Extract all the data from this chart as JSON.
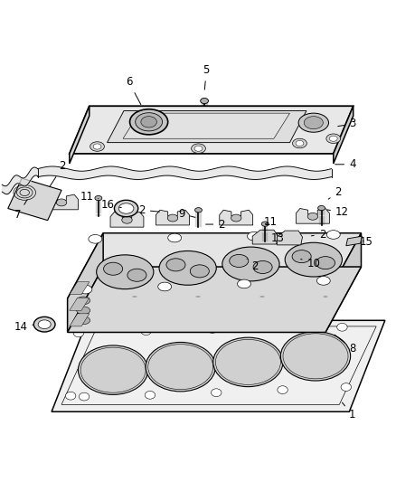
{
  "title": "",
  "background_color": "#ffffff",
  "line_color": "#000000",
  "label_color": "#000000",
  "fig_width": 4.39,
  "fig_height": 5.33,
  "dpi": 100,
  "font_size": 8.5,
  "line_width": 0.8
}
